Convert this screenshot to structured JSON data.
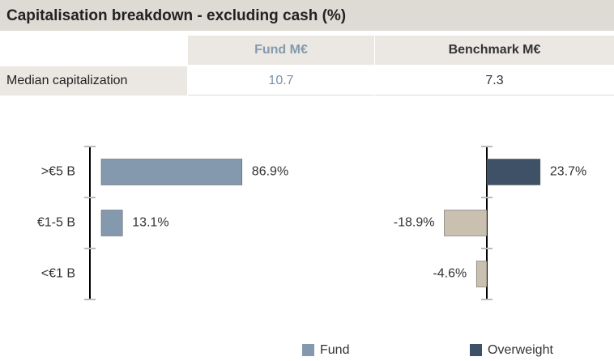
{
  "header": {
    "title": "Capitalisation breakdown - excluding cash (%)"
  },
  "table": {
    "columns": [
      "Fund M€",
      "Benchmark M€"
    ],
    "rows": [
      [
        "Median capitalization",
        10.7,
        7.3
      ]
    ]
  },
  "legend": [
    {
      "name": "Fund",
      "color": "#8499ad"
    },
    {
      "name": "Overweight",
      "color": "#3e5166"
    }
  ],
  "chart_data": [
    {
      "type": "hbar",
      "categories": [
        ">€5 B",
        "€1-5 B",
        "<€1 B"
      ],
      "values": [
        86.9,
        13.1,
        null
      ],
      "value_labels": [
        "86.9%",
        "13.1%",
        null
      ],
      "color": "#8499ad"
    },
    {
      "type": "hbar",
      "values": [
        23.7,
        -18.9,
        -4.6
      ],
      "value_labels": [
        "23.7%",
        "-18.9%",
        "-4.6%"
      ],
      "positive_color": "#3e5166",
      "negative_color": "#c9c0b0"
    }
  ]
}
